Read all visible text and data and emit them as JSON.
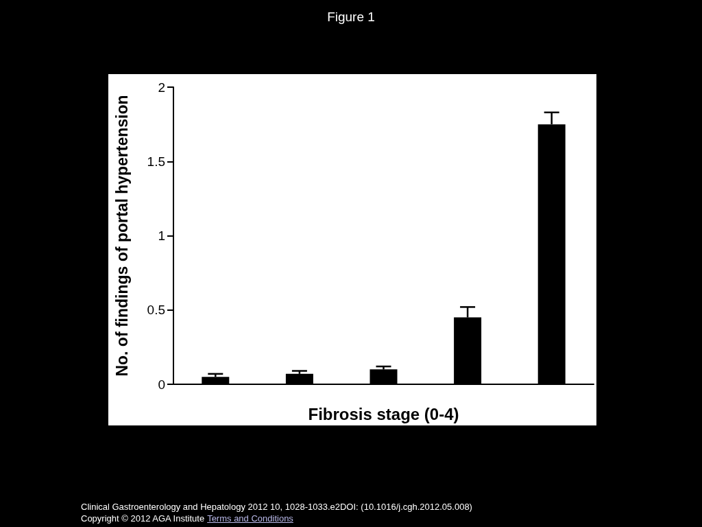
{
  "chart_data": {
    "type": "bar",
    "title": "Figure 1",
    "xlabel": "Fibrosis stage (0-4)",
    "ylabel": "No. of findings of portal hypertension",
    "categories": [
      null,
      null,
      null,
      null,
      null
    ],
    "values": [
      0.05,
      0.07,
      0.1,
      0.45,
      1.75
    ],
    "errors": [
      [
        0.05,
        0.07
      ],
      [
        0.07,
        0.09
      ],
      [
        0.1,
        0.12
      ],
      [
        0.45,
        0.52
      ],
      [
        1.75,
        1.83
      ]
    ],
    "color": "#000000",
    "ylim": [
      0,
      2
    ],
    "yticks": [
      0,
      0.5,
      1,
      1.5,
      2
    ],
    "grid": false,
    "tick_labels": "y",
    "annotations": [
      "Clinical Gastroenterology and Hepatology 2012 10, 1028-1033.e2DOI: (10.1016/j.cgh.2012.05.008)",
      "Copyright © 2012 AGA Institute",
      "Terms and Conditions"
    ]
  }
}
